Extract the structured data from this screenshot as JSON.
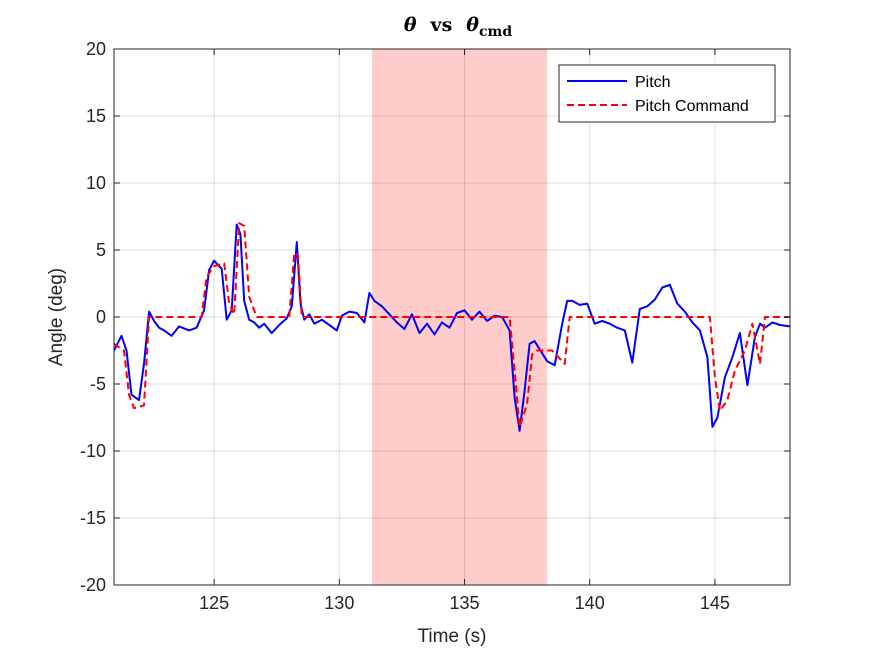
{
  "chart_data": {
    "type": "line",
    "title": {
      "symbol": "θ",
      "middle": "vs",
      "symbol2": "θ",
      "subscript": "cmd"
    },
    "xlabel": "Time (s)",
    "ylabel": "Angle (deg)",
    "xlim": [
      121,
      148
    ],
    "ylim": [
      -20,
      20
    ],
    "xticks": [
      125,
      130,
      135,
      140,
      145
    ],
    "yticks": [
      -20,
      -15,
      -10,
      -5,
      0,
      5,
      10,
      15,
      20
    ],
    "grid": true,
    "legend_position": "top-right",
    "highlight_region": {
      "x_start": 131.3,
      "x_end": 138.3,
      "color": "#ffcccc"
    },
    "series": [
      {
        "name": "Pitch",
        "color": "#0000ff",
        "style": "solid",
        "x": [
          121.0,
          121.3,
          121.5,
          121.7,
          122.0,
          122.2,
          122.4,
          122.6,
          122.8,
          123.0,
          123.3,
          123.6,
          124.0,
          124.3,
          124.6,
          124.8,
          125.0,
          125.3,
          125.5,
          125.7,
          125.9,
          126.05,
          126.2,
          126.4,
          126.6,
          126.8,
          127.0,
          127.3,
          127.6,
          127.9,
          128.1,
          128.3,
          128.45,
          128.6,
          128.8,
          129.0,
          129.3,
          129.6,
          129.9,
          130.1,
          130.4,
          130.7,
          131.0,
          131.2,
          131.4,
          131.7,
          132.0,
          132.3,
          132.6,
          132.9,
          133.2,
          133.5,
          133.8,
          134.1,
          134.4,
          134.7,
          135.0,
          135.3,
          135.6,
          135.9,
          136.2,
          136.5,
          136.8,
          137.0,
          137.2,
          137.4,
          137.6,
          137.8,
          138.0,
          138.3,
          138.6,
          138.9,
          139.1,
          139.3,
          139.6,
          139.9,
          140.2,
          140.5,
          140.8,
          141.1,
          141.4,
          141.7,
          142.0,
          142.3,
          142.6,
          142.9,
          143.2,
          143.5,
          143.8,
          144.1,
          144.4,
          144.7,
          144.9,
          145.1,
          145.4,
          145.7,
          146.0,
          146.3,
          146.6,
          146.8,
          147.0,
          147.3,
          147.6,
          148.0
        ],
        "values": [
          -2.5,
          -1.4,
          -2.5,
          -5.8,
          -6.2,
          -3.5,
          0.4,
          -0.3,
          -0.8,
          -1.0,
          -1.4,
          -0.7,
          -1.0,
          -0.8,
          0.5,
          3.5,
          4.2,
          3.6,
          -0.2,
          0.5,
          6.9,
          6.2,
          1.2,
          -0.2,
          -0.4,
          -0.8,
          -0.5,
          -1.2,
          -0.6,
          -0.1,
          0.8,
          5.6,
          1.0,
          -0.2,
          0.2,
          -0.5,
          -0.2,
          -0.6,
          -1.0,
          0.1,
          0.4,
          0.3,
          -0.4,
          1.8,
          1.2,
          0.8,
          0.2,
          -0.4,
          -0.9,
          0.2,
          -1.2,
          -0.5,
          -1.3,
          -0.4,
          -0.8,
          0.3,
          0.5,
          -0.2,
          0.4,
          -0.3,
          0.1,
          0.0,
          -1.0,
          -6.0,
          -8.5,
          -5.5,
          -2.0,
          -1.8,
          -2.4,
          -3.3,
          -3.6,
          -0.5,
          1.2,
          1.2,
          0.9,
          1.0,
          -0.5,
          -0.3,
          -0.5,
          -0.8,
          -1.0,
          -3.4,
          0.6,
          0.8,
          1.3,
          2.2,
          2.4,
          1.0,
          0.4,
          -0.4,
          -1.0,
          -3.0,
          -8.2,
          -7.5,
          -4.5,
          -3.0,
          -1.2,
          -5.1,
          -1.5,
          -0.5,
          -0.8,
          -0.4,
          -0.6,
          -0.7
        ]
      },
      {
        "name": "Pitch Command",
        "color": "#ff0000",
        "style": "dashed",
        "x": [
          121.0,
          121.4,
          121.6,
          121.8,
          122.2,
          122.4,
          123.0,
          124.5,
          124.7,
          125.0,
          125.4,
          125.6,
          125.8,
          126.0,
          126.2,
          126.4,
          126.7,
          127.5,
          128.0,
          128.2,
          128.35,
          128.5,
          130.0,
          131.0,
          132.0,
          134.0,
          136.0,
          136.8,
          137.0,
          137.2,
          137.5,
          137.7,
          137.9,
          138.5,
          139.0,
          139.2,
          140.0,
          142.0,
          144.0,
          144.8,
          145.0,
          145.2,
          145.5,
          145.8,
          146.2,
          146.5,
          146.8,
          147.0,
          147.5,
          148.0
        ],
        "values": [
          -2.0,
          -2.5,
          -5.8,
          -6.8,
          -6.6,
          0.0,
          0.0,
          0.0,
          3.0,
          3.8,
          4.0,
          1.0,
          0.2,
          7.0,
          6.8,
          1.5,
          0.0,
          0.0,
          0.0,
          4.8,
          4.6,
          0.0,
          0.0,
          0.0,
          0.0,
          0.0,
          0.0,
          0.0,
          -4.0,
          -8.2,
          -6.5,
          -2.8,
          -2.5,
          -2.5,
          -3.5,
          0.0,
          0.0,
          0.0,
          0.0,
          0.0,
          -4.5,
          -7.0,
          -6.2,
          -4.0,
          -2.5,
          -0.5,
          -3.5,
          0.0,
          0.0,
          0.0
        ]
      }
    ]
  }
}
